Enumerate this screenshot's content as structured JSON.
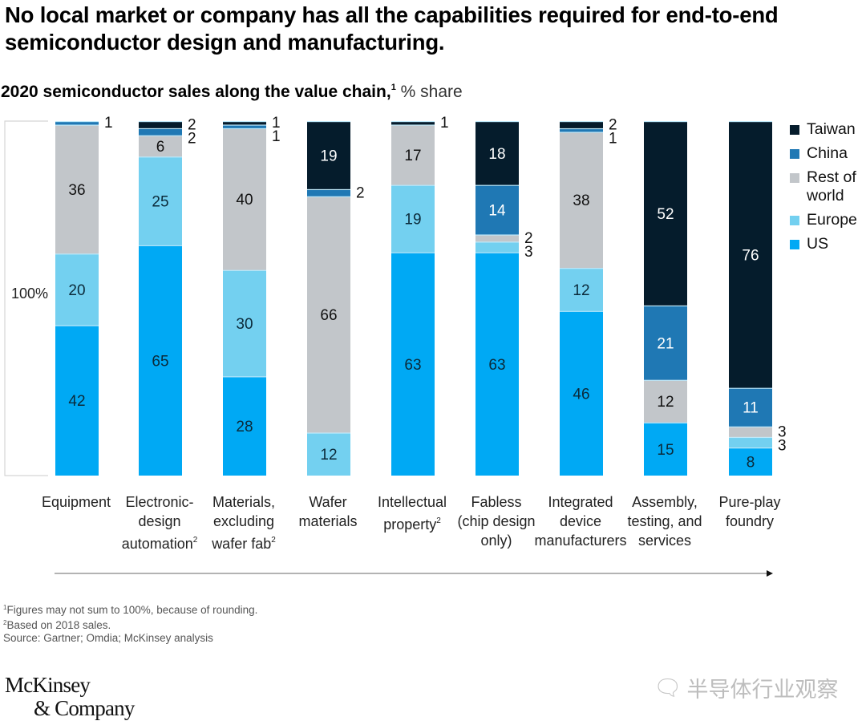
{
  "title": "No local market or company has all the capabilities required for end-to-end semiconductor design and manufacturing.",
  "subtitle": {
    "main": "2020 semiconductor sales along the value chain,",
    "sup": "1",
    "unit": " % share"
  },
  "bracket_label": "100%",
  "colors": {
    "Taiwan": "#051c2c",
    "China": "#1f78b4",
    "Rest of world": "#c2c6ca",
    "Europe": "#73d0f0",
    "US": "#00a9f4",
    "separator": "#bfe9fa"
  },
  "legend": [
    {
      "key": "Taiwan",
      "label": "Taiwan"
    },
    {
      "key": "China",
      "label": "China"
    },
    {
      "key": "Rest of world",
      "label": "Rest of world"
    },
    {
      "key": "Europe",
      "label": "Europe"
    },
    {
      "key": "US",
      "label": "US"
    }
  ],
  "chart_data": {
    "type": "bar",
    "stacked": true,
    "title": "2020 semiconductor sales along the value chain, % share",
    "xlabel": "",
    "ylabel": "% share",
    "ylim": [
      0,
      100
    ],
    "legend_position": "right",
    "stack_order_bottom_to_top": [
      "US",
      "Europe",
      "Rest of world",
      "China",
      "Taiwan"
    ],
    "categories": [
      {
        "label": "Equipment",
        "sup": ""
      },
      {
        "label": "Electronic-\ndesign\nautomation",
        "sup": "2"
      },
      {
        "label": "Materials,\nexcluding\nwafer fab",
        "sup": "2"
      },
      {
        "label": "Wafer\nmaterials",
        "sup": ""
      },
      {
        "label": "Intellectual\nproperty",
        "sup": "2"
      },
      {
        "label": "Fabless\n(chip design\nonly)",
        "sup": ""
      },
      {
        "label": "Integrated\ndevice\nmanufacturers",
        "sup": ""
      },
      {
        "label": "Assembly,\ntesting, and\nservices",
        "sup": ""
      },
      {
        "label": "Pure-play\nfoundry",
        "sup": ""
      }
    ],
    "series": [
      {
        "name": "US",
        "values": [
          42,
          65,
          28,
          0,
          63,
          63,
          46,
          15,
          8
        ]
      },
      {
        "name": "Europe",
        "values": [
          20,
          25,
          30,
          12,
          19,
          3,
          12,
          0,
          3
        ]
      },
      {
        "name": "Rest of world",
        "values": [
          36,
          6,
          40,
          66,
          17,
          2,
          38,
          12,
          3
        ]
      },
      {
        "name": "China",
        "values": [
          1,
          2,
          1,
          2,
          0,
          14,
          1,
          21,
          11
        ]
      },
      {
        "name": "Taiwan",
        "values": [
          0,
          2,
          1,
          19,
          1,
          18,
          2,
          52,
          76
        ]
      }
    ]
  },
  "footnotes": [
    {
      "sup": "1",
      "text": "Figures may not sum to 100%, because of rounding."
    },
    {
      "sup": "2",
      "text": "Based on 2018 sales."
    },
    {
      "sup": "",
      "text": " Source: Gartner; Omdia; McKinsey analysis"
    }
  ],
  "logo": {
    "line1": "McKinsey",
    "line2": "& Company"
  },
  "watermark": {
    "icon": "wechat-icon",
    "text": "半导体行业观察"
  }
}
